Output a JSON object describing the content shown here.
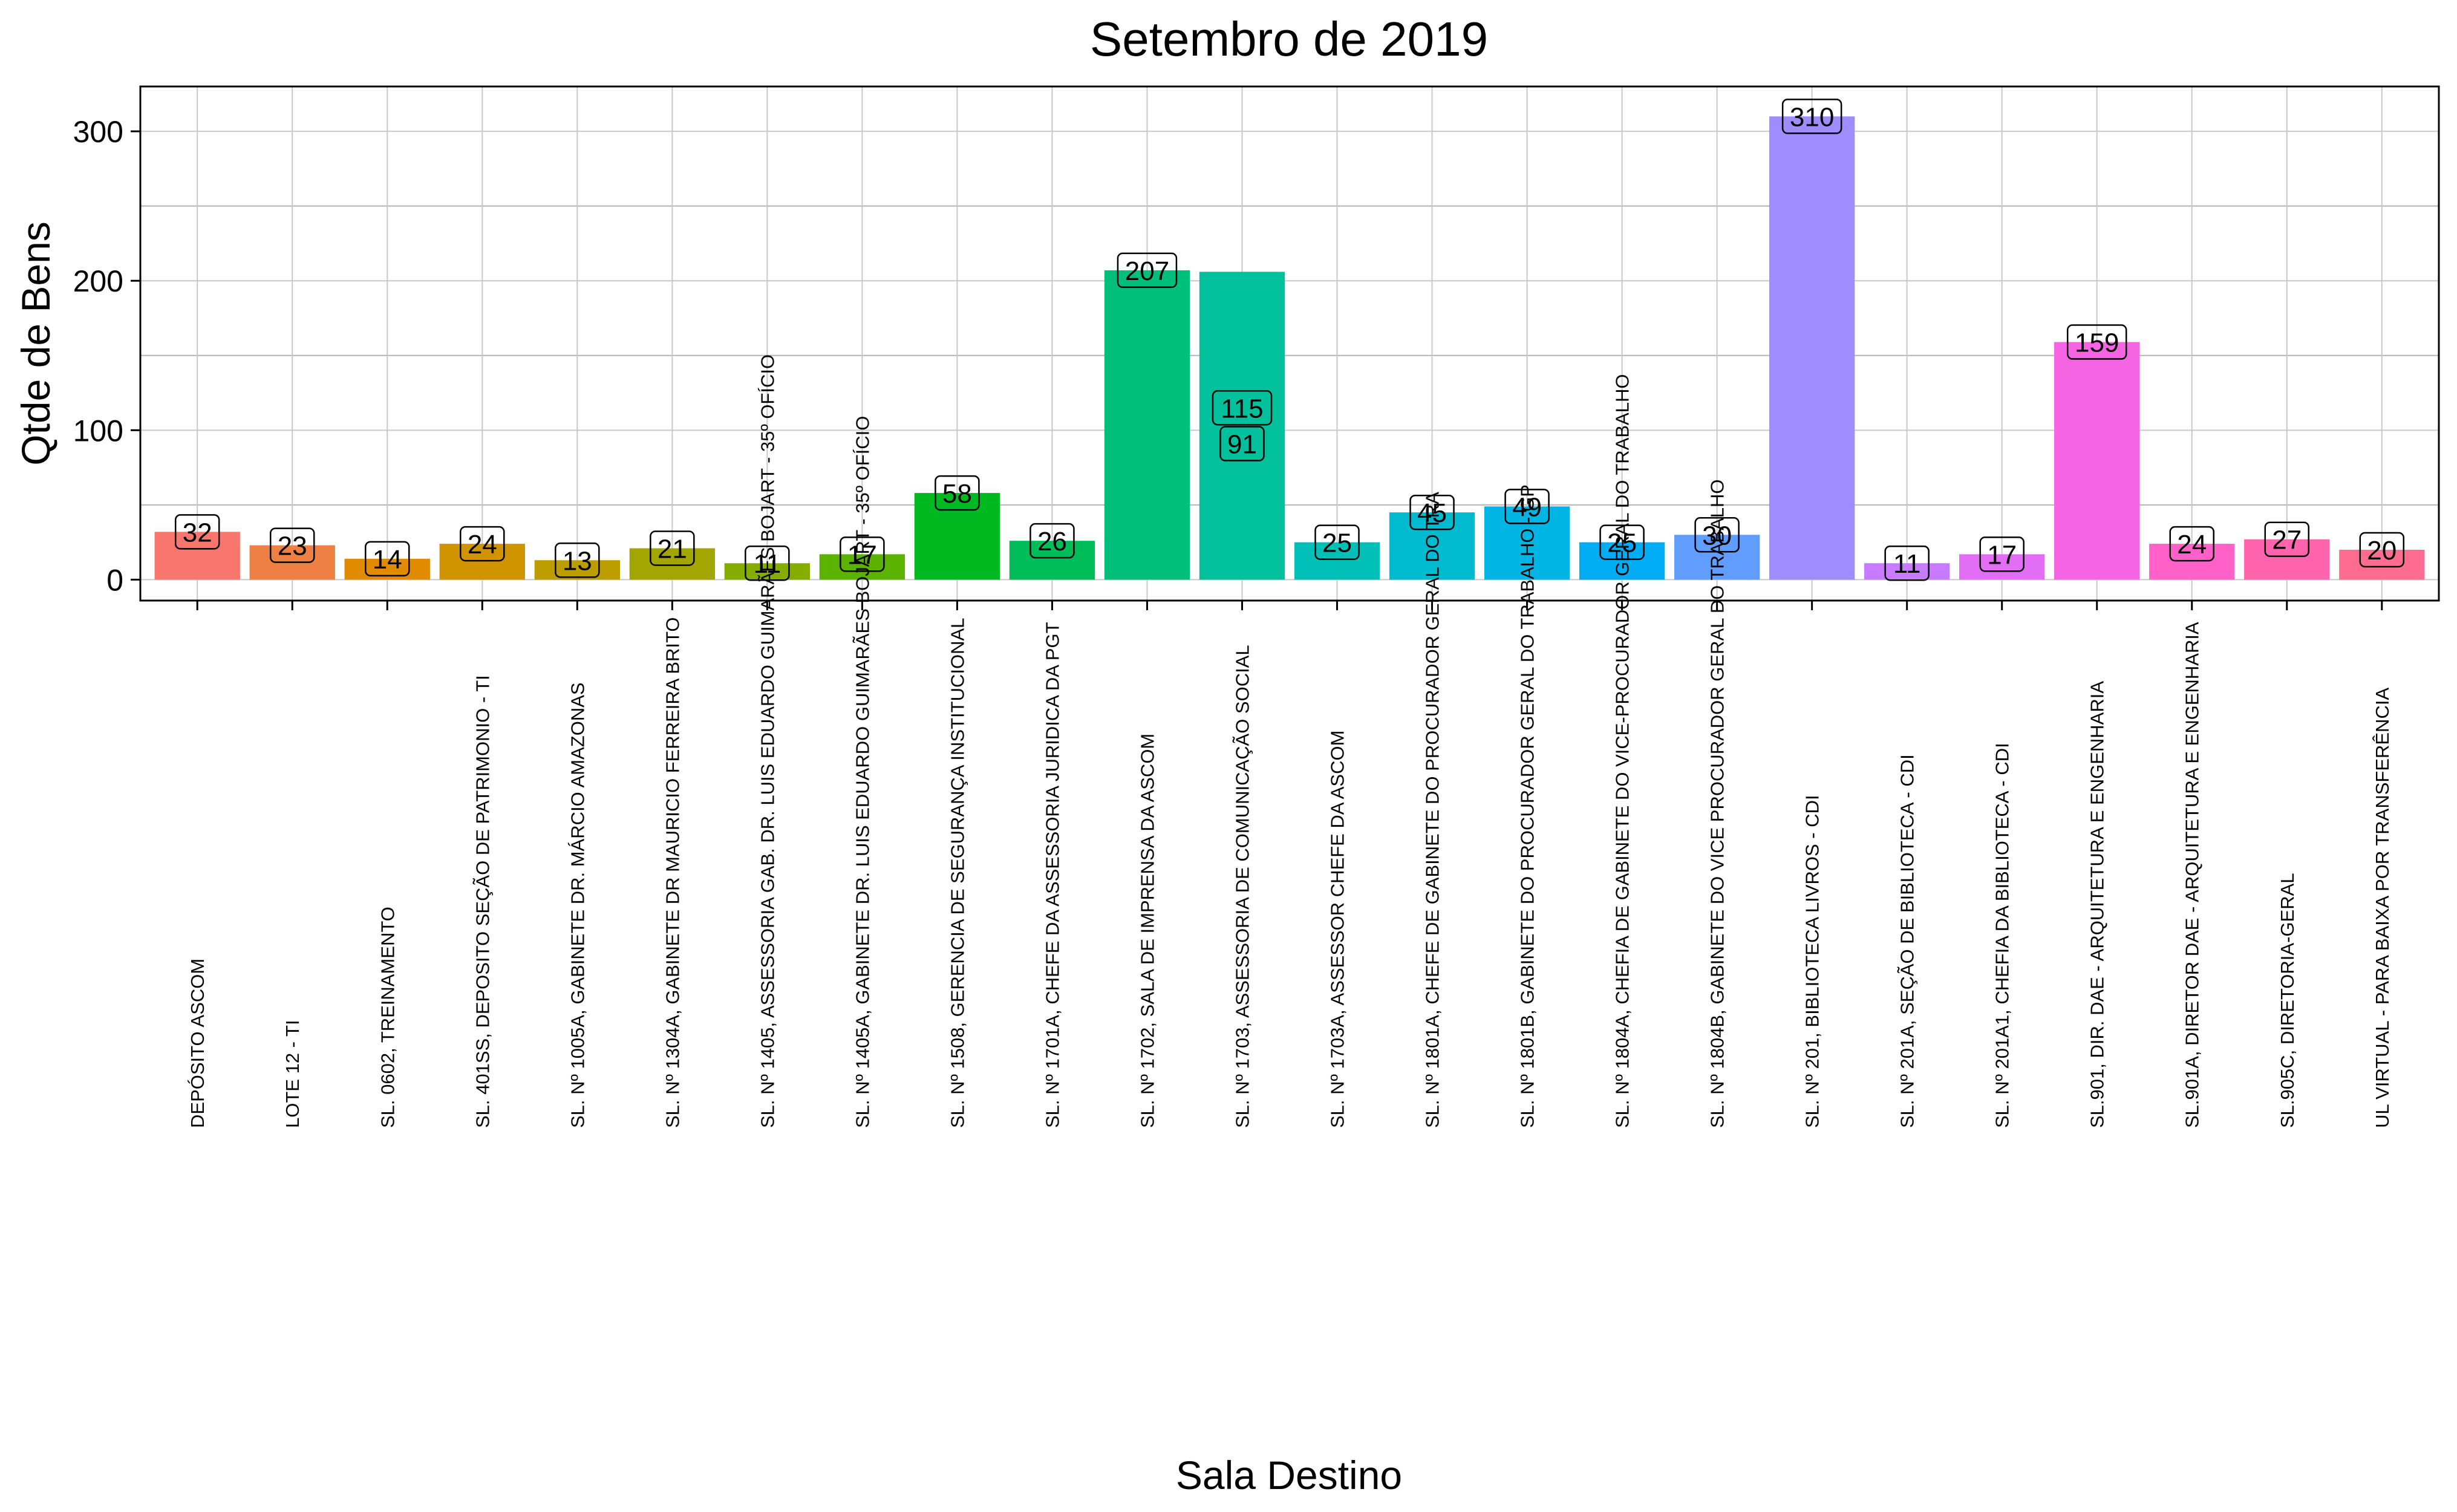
{
  "chart_data": {
    "type": "bar",
    "title": "Setembro  de  2019",
    "xlabel": "Sala Destino",
    "ylabel": "Qtde de Bens",
    "ylim": [
      -14,
      330
    ],
    "yticks": [
      0,
      100,
      200,
      300
    ],
    "grid": true,
    "legend": "none",
    "categories": [
      "DEPÓSITO ASCOM",
      "LOTE 12 - TI",
      "SL. 0602, TREINAMENTO",
      "SL. 401SS, DEPOSITO SEÇÃO DE PATRIMONIO - TI",
      "SL. Nº 1005A, GABINETE DR. MÁRCIO AMAZONAS",
      "SL. Nº 1304A, GABINETE DR MAURICIO FERREIRA BRITO",
      "SL. Nº 1405, ASSESSORIA GAB. DR. LUIS EDUARDO GUIMARÃES BOJART - 35º OFÍCIO",
      "SL. Nº 1405A, GABINETE DR. LUIS EDUARDO GUIMARÃES BOJART - 35º OFÍCIO",
      "SL. Nº 1508, GERENCIA DE SEGURANÇA INSTITUCIONAL",
      "SL. Nº 1701A, CHEFE DA ASSESSORIA JURIDICA DA PGT",
      "SL. Nº 1702, SALA DE IMPRENSA DA ASCOM",
      "SL. Nº 1703, ASSESSORIA DE COMUNICAÇÃO SOCIAL",
      "SL. Nº 1703A, ASSESSOR CHEFE DA ASCOM",
      "SL. Nº 1801A, CHEFE DE GABINETE DO PROCURADOR GERAL DO TRA",
      "SL. Nº 1801B, GABINETE DO PROCURADOR GERAL DO TRABALHO - GP",
      "SL. Nº 1804A, CHEFIA DE GABINETE DO VICE-PROCURADOR GERAL DO TRABALHO",
      "SL. Nº 1804B, GABINETE DO VICE PROCURADOR GERAL DO TRABALHO",
      "SL. Nº 201, BIBLIOTECA LIVROS - CDI",
      "SL. Nº 201A, SEÇÃO DE BIBLIOTECA - CDI",
      "SL. Nº 201A1, CHEFIA DA BIBLIOTECA - CDI",
      "SL.901, DIR. DAE - ARQUITETURA E ENGENHARIA",
      "SL.901A, DIRETOR DAE - ARQUITETURA E ENGENHARIA",
      "SL.905C, DIRETORIA-GERAL",
      "UL VIRTUAL - PARA BAIXA POR TRANSFERÊNCIA"
    ],
    "values": [
      32,
      23,
      14,
      24,
      13,
      21,
      11,
      17,
      58,
      26,
      207,
      206,
      25,
      45,
      49,
      25,
      30,
      310,
      11,
      17,
      159,
      24,
      27,
      20
    ],
    "stacked_parts": {
      "11": [
        115,
        91
      ]
    },
    "data_labels": [
      [
        "32"
      ],
      [
        "23"
      ],
      [
        "14"
      ],
      [
        "24"
      ],
      [
        "13"
      ],
      [
        "21"
      ],
      [
        "11"
      ],
      [
        "17"
      ],
      [
        "58"
      ],
      [
        "26"
      ],
      [
        "207"
      ],
      [
        "115",
        "91"
      ],
      [
        "25"
      ],
      [
        "45"
      ],
      [
        "49"
      ],
      [
        "25"
      ],
      [
        "30"
      ],
      [
        "310"
      ],
      [
        "11"
      ],
      [
        "17"
      ],
      [
        "159"
      ],
      [
        "24"
      ],
      [
        "27"
      ],
      [
        "20"
      ]
    ],
    "colors": [
      "#F8766D",
      "#EE8043",
      "#E08B00",
      "#CF9400",
      "#BB9D00",
      "#A3A500",
      "#85AD00",
      "#5BB300",
      "#00B81F",
      "#00BC59",
      "#00BF7D",
      "#00C19C",
      "#00BFB7",
      "#00BBCF",
      "#00B5E4",
      "#00ADF5",
      "#619CFF",
      "#9F8CFF",
      "#C77CFF",
      "#E36EF6",
      "#F564E3",
      "#FF61C9",
      "#FF64AD",
      "#FF6C90"
    ]
  }
}
